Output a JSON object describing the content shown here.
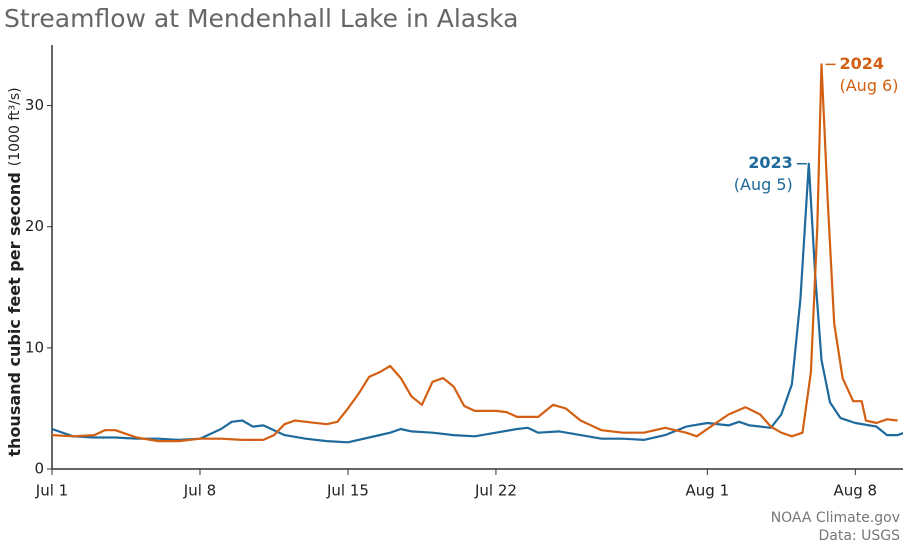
{
  "chart_data": {
    "type": "line",
    "title": "Streamflow at Mendenhall Lake in Alaska",
    "y_label": "thousand cubic feet per second",
    "y_unit": "(1000 ft³/s)",
    "source": "NOAA Climate.gov",
    "data_credit": "Data: USGS",
    "xlim": [
      0,
      40.5
    ],
    "ylim": [
      0,
      35
    ],
    "xticks": [
      {
        "value": 0,
        "label": "Jul 1"
      },
      {
        "value": 7,
        "label": "Jul 8"
      },
      {
        "value": 14,
        "label": "Jul 15"
      },
      {
        "value": 21,
        "label": "Jul 22"
      },
      {
        "value": 31,
        "label": "Aug 1"
      },
      {
        "value": 38,
        "label": "Aug 8"
      }
    ],
    "yticks": [
      0,
      10,
      20,
      30
    ],
    "series": [
      {
        "name": "2023",
        "annotation": "(Aug 5)",
        "color": "#1f6a9c",
        "x": [
          0,
          1,
          2,
          3,
          4,
          5,
          6,
          7,
          8,
          8.5,
          9,
          9.5,
          10,
          11,
          12,
          13,
          14,
          15,
          16,
          16.5,
          17,
          18,
          19,
          20,
          21,
          22,
          22.5,
          23,
          24,
          25,
          26,
          27,
          28,
          29,
          30,
          31,
          32,
          32.5,
          33,
          34,
          34.5,
          35,
          35.4,
          35.8,
          36.1,
          36.4,
          36.8,
          37.3,
          38,
          39,
          39.5,
          40,
          40.5
        ],
        "values": [
          3.3,
          2.7,
          2.6,
          2.6,
          2.5,
          2.5,
          2.4,
          2.5,
          3.3,
          3.9,
          4.0,
          3.5,
          3.6,
          2.8,
          2.5,
          2.3,
          2.2,
          2.6,
          3.0,
          3.3,
          3.1,
          3.0,
          2.8,
          2.7,
          3.0,
          3.3,
          3.4,
          3.0,
          3.1,
          2.8,
          2.5,
          2.5,
          2.4,
          2.8,
          3.5,
          3.8,
          3.6,
          3.9,
          3.6,
          3.4,
          4.5,
          7,
          14,
          25.2,
          16,
          9,
          5.5,
          4.2,
          3.8,
          3.5,
          2.8,
          2.8,
          3.1
        ]
      },
      {
        "name": "2024",
        "annotation": "(Aug 6)",
        "color": "#d35f12",
        "x": [
          0,
          1,
          2,
          2.5,
          3,
          4,
          5,
          6,
          7,
          8,
          9,
          10,
          10.5,
          11,
          11.5,
          12,
          13,
          13.5,
          14,
          14.5,
          15,
          15.5,
          16,
          16.5,
          17,
          17.5,
          18,
          18.5,
          19,
          19.5,
          20,
          21,
          21.5,
          22,
          23,
          23.7,
          24.3,
          25,
          26,
          27,
          28,
          29,
          30,
          30.5,
          31,
          32,
          32.8,
          33.5,
          34,
          34.5,
          35,
          35.5,
          35.9,
          36.2,
          36.4,
          36.7,
          37,
          37.4,
          37.9,
          38.3,
          38.5,
          39,
          39.5,
          40
        ],
        "values": [
          2.8,
          2.7,
          2.8,
          3.2,
          3.2,
          2.6,
          2.3,
          2.3,
          2.5,
          2.5,
          2.4,
          2.4,
          2.8,
          3.7,
          4.0,
          3.9,
          3.7,
          3.9,
          5.0,
          6.2,
          7.6,
          8.0,
          8.5,
          7.5,
          6.0,
          5.3,
          7.2,
          7.5,
          6.8,
          5.2,
          4.8,
          4.8,
          4.7,
          4.3,
          4.3,
          5.3,
          5.0,
          4.0,
          3.2,
          3.0,
          3.0,
          3.4,
          3.0,
          2.7,
          3.3,
          4.5,
          5.1,
          4.5,
          3.5,
          3.0,
          2.7,
          3.0,
          8,
          20,
          33.4,
          22,
          12,
          7.5,
          5.6,
          5.6,
          4.0,
          3.8,
          4.1,
          4.0
        ]
      }
    ]
  }
}
